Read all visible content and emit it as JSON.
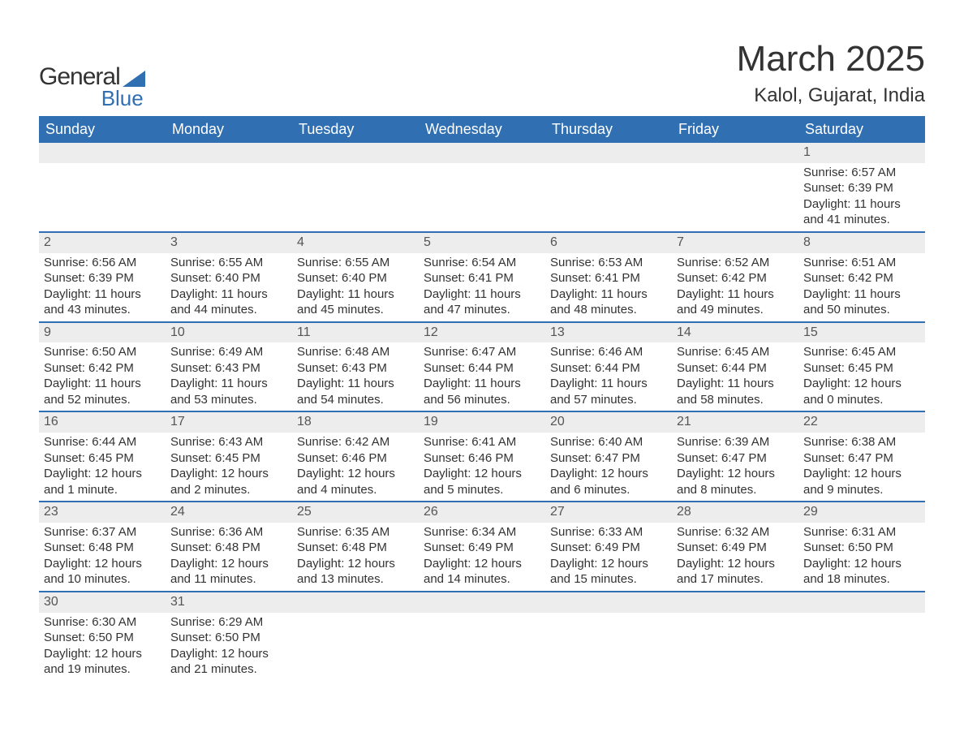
{
  "logo": {
    "text1": "General",
    "text2": "Blue"
  },
  "title": "March 2025",
  "location": "Kalol, Gujarat, India",
  "colors": {
    "header_bg": "#2f6fb2",
    "header_text": "#ffffff",
    "row_sep": "#2f6fb2",
    "daynum_bg": "#ededed",
    "text": "#333333",
    "page_bg": "#ffffff"
  },
  "typography": {
    "title_fontsize": 44,
    "location_fontsize": 24,
    "dayheader_fontsize": 18,
    "body_fontsize": 15
  },
  "day_headers": [
    "Sunday",
    "Monday",
    "Tuesday",
    "Wednesday",
    "Thursday",
    "Friday",
    "Saturday"
  ],
  "weeks": [
    [
      null,
      null,
      null,
      null,
      null,
      null,
      {
        "n": "1",
        "sr": "Sunrise: 6:57 AM",
        "ss": "Sunset: 6:39 PM",
        "dl": "Daylight: 11 hours and 41 minutes."
      }
    ],
    [
      {
        "n": "2",
        "sr": "Sunrise: 6:56 AM",
        "ss": "Sunset: 6:39 PM",
        "dl": "Daylight: 11 hours and 43 minutes."
      },
      {
        "n": "3",
        "sr": "Sunrise: 6:55 AM",
        "ss": "Sunset: 6:40 PM",
        "dl": "Daylight: 11 hours and 44 minutes."
      },
      {
        "n": "4",
        "sr": "Sunrise: 6:55 AM",
        "ss": "Sunset: 6:40 PM",
        "dl": "Daylight: 11 hours and 45 minutes."
      },
      {
        "n": "5",
        "sr": "Sunrise: 6:54 AM",
        "ss": "Sunset: 6:41 PM",
        "dl": "Daylight: 11 hours and 47 minutes."
      },
      {
        "n": "6",
        "sr": "Sunrise: 6:53 AM",
        "ss": "Sunset: 6:41 PM",
        "dl": "Daylight: 11 hours and 48 minutes."
      },
      {
        "n": "7",
        "sr": "Sunrise: 6:52 AM",
        "ss": "Sunset: 6:42 PM",
        "dl": "Daylight: 11 hours and 49 minutes."
      },
      {
        "n": "8",
        "sr": "Sunrise: 6:51 AM",
        "ss": "Sunset: 6:42 PM",
        "dl": "Daylight: 11 hours and 50 minutes."
      }
    ],
    [
      {
        "n": "9",
        "sr": "Sunrise: 6:50 AM",
        "ss": "Sunset: 6:42 PM",
        "dl": "Daylight: 11 hours and 52 minutes."
      },
      {
        "n": "10",
        "sr": "Sunrise: 6:49 AM",
        "ss": "Sunset: 6:43 PM",
        "dl": "Daylight: 11 hours and 53 minutes."
      },
      {
        "n": "11",
        "sr": "Sunrise: 6:48 AM",
        "ss": "Sunset: 6:43 PM",
        "dl": "Daylight: 11 hours and 54 minutes."
      },
      {
        "n": "12",
        "sr": "Sunrise: 6:47 AM",
        "ss": "Sunset: 6:44 PM",
        "dl": "Daylight: 11 hours and 56 minutes."
      },
      {
        "n": "13",
        "sr": "Sunrise: 6:46 AM",
        "ss": "Sunset: 6:44 PM",
        "dl": "Daylight: 11 hours and 57 minutes."
      },
      {
        "n": "14",
        "sr": "Sunrise: 6:45 AM",
        "ss": "Sunset: 6:44 PM",
        "dl": "Daylight: 11 hours and 58 minutes."
      },
      {
        "n": "15",
        "sr": "Sunrise: 6:45 AM",
        "ss": "Sunset: 6:45 PM",
        "dl": "Daylight: 12 hours and 0 minutes."
      }
    ],
    [
      {
        "n": "16",
        "sr": "Sunrise: 6:44 AM",
        "ss": "Sunset: 6:45 PM",
        "dl": "Daylight: 12 hours and 1 minute."
      },
      {
        "n": "17",
        "sr": "Sunrise: 6:43 AM",
        "ss": "Sunset: 6:45 PM",
        "dl": "Daylight: 12 hours and 2 minutes."
      },
      {
        "n": "18",
        "sr": "Sunrise: 6:42 AM",
        "ss": "Sunset: 6:46 PM",
        "dl": "Daylight: 12 hours and 4 minutes."
      },
      {
        "n": "19",
        "sr": "Sunrise: 6:41 AM",
        "ss": "Sunset: 6:46 PM",
        "dl": "Daylight: 12 hours and 5 minutes."
      },
      {
        "n": "20",
        "sr": "Sunrise: 6:40 AM",
        "ss": "Sunset: 6:47 PM",
        "dl": "Daylight: 12 hours and 6 minutes."
      },
      {
        "n": "21",
        "sr": "Sunrise: 6:39 AM",
        "ss": "Sunset: 6:47 PM",
        "dl": "Daylight: 12 hours and 8 minutes."
      },
      {
        "n": "22",
        "sr": "Sunrise: 6:38 AM",
        "ss": "Sunset: 6:47 PM",
        "dl": "Daylight: 12 hours and 9 minutes."
      }
    ],
    [
      {
        "n": "23",
        "sr": "Sunrise: 6:37 AM",
        "ss": "Sunset: 6:48 PM",
        "dl": "Daylight: 12 hours and 10 minutes."
      },
      {
        "n": "24",
        "sr": "Sunrise: 6:36 AM",
        "ss": "Sunset: 6:48 PM",
        "dl": "Daylight: 12 hours and 11 minutes."
      },
      {
        "n": "25",
        "sr": "Sunrise: 6:35 AM",
        "ss": "Sunset: 6:48 PM",
        "dl": "Daylight: 12 hours and 13 minutes."
      },
      {
        "n": "26",
        "sr": "Sunrise: 6:34 AM",
        "ss": "Sunset: 6:49 PM",
        "dl": "Daylight: 12 hours and 14 minutes."
      },
      {
        "n": "27",
        "sr": "Sunrise: 6:33 AM",
        "ss": "Sunset: 6:49 PM",
        "dl": "Daylight: 12 hours and 15 minutes."
      },
      {
        "n": "28",
        "sr": "Sunrise: 6:32 AM",
        "ss": "Sunset: 6:49 PM",
        "dl": "Daylight: 12 hours and 17 minutes."
      },
      {
        "n": "29",
        "sr": "Sunrise: 6:31 AM",
        "ss": "Sunset: 6:50 PM",
        "dl": "Daylight: 12 hours and 18 minutes."
      }
    ],
    [
      {
        "n": "30",
        "sr": "Sunrise: 6:30 AM",
        "ss": "Sunset: 6:50 PM",
        "dl": "Daylight: 12 hours and 19 minutes."
      },
      {
        "n": "31",
        "sr": "Sunrise: 6:29 AM",
        "ss": "Sunset: 6:50 PM",
        "dl": "Daylight: 12 hours and 21 minutes."
      },
      null,
      null,
      null,
      null,
      null
    ]
  ]
}
